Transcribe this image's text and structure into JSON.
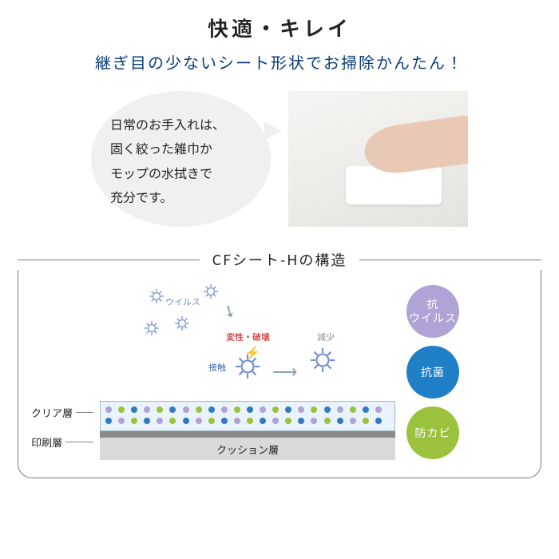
{
  "colors": {
    "title": "#222222",
    "subtitle": "#0a3d7a",
    "bubble_bg": "#f0f0f0",
    "panel_border": "#7a7a7a",
    "clear_layer_bg": "#eaf3fb",
    "clear_layer_border": "#9fb9c8",
    "print_layer_bg": "#8a8a8a",
    "cushion_layer_bg": "#d9d9d9",
    "dot_a": "#b0a3d6",
    "dot_b": "#2f7bc0",
    "dot_c": "#9ac23c",
    "virus_main": "#6f8fce",
    "virus_faded": "#c3c8d4",
    "arrow": "#8aa0b4",
    "label_grey": "#8a8a8a",
    "denature": "#d43b3b",
    "contact": "#3f6fb5"
  },
  "title": "快適・キレイ",
  "subtitle": "継ぎ目の少ないシート形状でお掃除かんたん！",
  "bubble_text": "日常のお手入れは、\n固く絞った雑巾か\nモップの水拭きで\n充分です。",
  "panel_title": "CFシート-Hの構造",
  "layer_labels": {
    "clear": "クリア層",
    "print": "印刷層",
    "cushion": "クッション層"
  },
  "diagram_labels": {
    "virus_small": "ウイルス",
    "denature": "変性・破壊",
    "contact": "接触",
    "reduce": "減少"
  },
  "badges": [
    {
      "label": "抗\nウイルス",
      "color": "#b0a3d6"
    },
    {
      "label": "抗菌",
      "color": "#1f7fc7"
    },
    {
      "label": "防カビ",
      "color": "#9ac23c"
    }
  ],
  "dots_pattern": {
    "count": 44,
    "layer_height": 36,
    "layer_width": 370
  }
}
